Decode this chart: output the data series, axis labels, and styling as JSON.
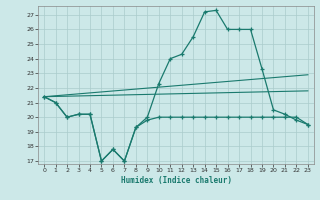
{
  "title": "",
  "xlabel": "Humidex (Indice chaleur)",
  "ylabel": "",
  "bg_color": "#cce8e8",
  "grid_color": "#aacccc",
  "line_color": "#1a7a6e",
  "xlim": [
    -0.5,
    23.5
  ],
  "ylim": [
    16.8,
    27.6
  ],
  "yticks": [
    17,
    18,
    19,
    20,
    21,
    22,
    23,
    24,
    25,
    26,
    27
  ],
  "xticks": [
    0,
    1,
    2,
    3,
    4,
    5,
    6,
    7,
    8,
    9,
    10,
    11,
    12,
    13,
    14,
    15,
    16,
    17,
    18,
    19,
    20,
    21,
    22,
    23
  ],
  "series_main": {
    "x": [
      0,
      1,
      2,
      3,
      4,
      5,
      6,
      7,
      8,
      9,
      10,
      11,
      12,
      13,
      14,
      15,
      16,
      17,
      18,
      19,
      20,
      21,
      22,
      23
    ],
    "y": [
      21.4,
      21.0,
      20.0,
      20.2,
      20.2,
      17.0,
      17.8,
      17.0,
      19.3,
      20.0,
      22.3,
      24.0,
      24.3,
      25.5,
      27.2,
      27.3,
      26.0,
      26.0,
      26.0,
      23.3,
      20.5,
      20.2,
      19.8,
      19.5
    ]
  },
  "series_low": {
    "x": [
      0,
      1,
      2,
      3,
      4,
      5,
      6,
      7,
      8,
      9,
      10,
      11,
      12,
      13,
      14,
      15,
      16,
      17,
      18,
      19,
      20,
      21,
      22,
      23
    ],
    "y": [
      21.4,
      21.0,
      20.0,
      20.2,
      20.2,
      17.0,
      17.8,
      17.0,
      19.3,
      19.8,
      20.0,
      20.0,
      20.0,
      20.0,
      20.0,
      20.0,
      20.0,
      20.0,
      20.0,
      20.0,
      20.0,
      20.0,
      20.0,
      19.5
    ]
  },
  "series_trend1": {
    "x": [
      0,
      23
    ],
    "y": [
      21.4,
      21.8
    ]
  },
  "series_trend2": {
    "x": [
      0,
      23
    ],
    "y": [
      21.4,
      22.9
    ]
  }
}
